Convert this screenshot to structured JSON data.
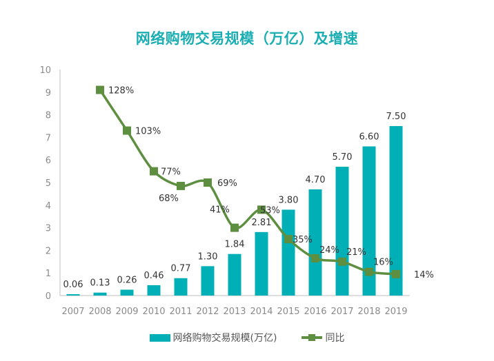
{
  "chart_data": {
    "type": "bar",
    "title": "网络购物交易规模（万亿）及增速",
    "xlabel": "",
    "ylabel": "",
    "ylim": [
      0,
      10
    ],
    "yticks": [
      0,
      1,
      2,
      3,
      4,
      5,
      6,
      7,
      8,
      9,
      10
    ],
    "grid": false,
    "legend_position": "bottom",
    "categories": [
      "2007",
      "2008",
      "2009",
      "2010",
      "2011",
      "2012",
      "2013",
      "2014",
      "2015",
      "2016",
      "2017",
      "2018",
      "2019"
    ],
    "series": [
      {
        "name": "网络购物交易规模(万亿)",
        "type": "bar",
        "color": "#00b0b6",
        "values": [
          0.06,
          0.13,
          0.26,
          0.46,
          0.77,
          1.3,
          1.84,
          2.81,
          3.8,
          4.7,
          5.7,
          6.6,
          7.5
        ],
        "labels": [
          "0.06",
          "0.13",
          "0.26",
          "0.46",
          "0.77",
          "1.30",
          "1.84",
          "2.81",
          "3.80",
          "4.70",
          "5.70",
          "6.60",
          "7.50"
        ]
      },
      {
        "name": "同比",
        "type": "line",
        "color": "#5e8f41",
        "marker": "square",
        "categories_start": "2008",
        "values_on_primary_axis": [
          9.1,
          7.3,
          5.5,
          4.85,
          5.0,
          3.0,
          3.8,
          2.5,
          1.65,
          1.5,
          1.05,
          0.95
        ],
        "labels": [
          "128%",
          "103%",
          "77%",
          "68%",
          "69%",
          "41%",
          "53%",
          "35%",
          "24%",
          "21%",
          "16%",
          "14%"
        ],
        "growth_percent": [
          128,
          103,
          77,
          68,
          69,
          41,
          53,
          35,
          24,
          21,
          16,
          14
        ]
      }
    ]
  },
  "legend": {
    "bar_label": "网络购物交易规模(万亿)",
    "line_label": "同比"
  }
}
